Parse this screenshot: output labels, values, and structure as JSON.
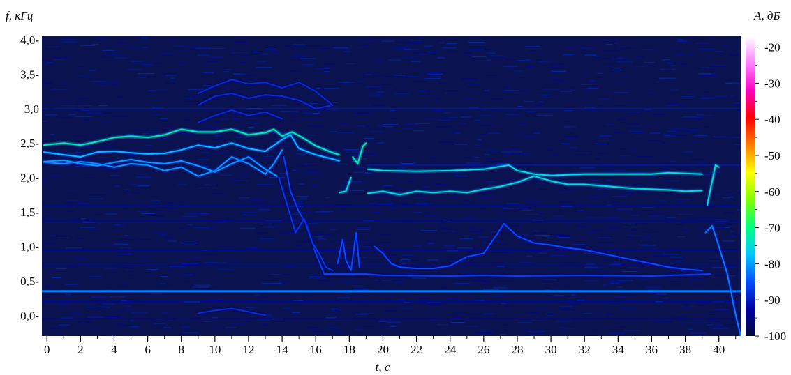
{
  "chart_data": {
    "type": "heatmap",
    "title": "",
    "xlabel": "t, с",
    "ylabel": "f, кГц",
    "colorbar_label": "A, дБ",
    "x_ticks": [
      0,
      2,
      4,
      6,
      8,
      10,
      12,
      14,
      16,
      18,
      20,
      22,
      24,
      26,
      28,
      30,
      32,
      34,
      36,
      38,
      40
    ],
    "x_tick_labels": [
      "0",
      "2",
      "4",
      "6",
      "8",
      "10",
      "12",
      "14",
      "16",
      "18",
      "20",
      "22",
      "24",
      "26",
      "28",
      "30",
      "32",
      "34",
      "36",
      "38",
      "40"
    ],
    "y_ticks": [
      0.0,
      0.5,
      1.0,
      1.5,
      2.0,
      2.5,
      3.0,
      3.5,
      4.0
    ],
    "y_tick_labels": [
      "0,0-",
      "0,5-",
      "1,0-",
      "1,5-",
      "2,0-",
      "2,5-",
      "3,0",
      "3,5-",
      "4,0-"
    ],
    "xlim": [
      -0.3,
      41.3
    ],
    "ylim": [
      -0.3,
      4.05
    ],
    "colorbar_ticks": [
      -20,
      -30,
      -40,
      -50,
      -60,
      -70,
      -80,
      -90,
      -100
    ],
    "colorbar_tick_labels": [
      "-20",
      "-30",
      "-40",
      "-50",
      "-60",
      "-70",
      "-80",
      "-90",
      "-100"
    ],
    "colorbar_range": [
      -100,
      -17
    ],
    "background_color": "#0a1250",
    "colormap": [
      "#000a3c",
      "#0000a0",
      "#0050ff",
      "#00c8ff",
      "#00ff80",
      "#80ff00",
      "#ffff00",
      "#ff8000",
      "#ff0000",
      "#ff00c0",
      "#ff80ff",
      "#ffffff"
    ],
    "constant_lines": [
      {
        "f": 0.35,
        "db": -82
      }
    ],
    "traces": [
      {
        "db": -72,
        "points": [
          [
            -0.2,
            2.47
          ],
          [
            1,
            2.5
          ],
          [
            2,
            2.47
          ],
          [
            3,
            2.52
          ],
          [
            4,
            2.58
          ],
          [
            5,
            2.6
          ],
          [
            6,
            2.58
          ],
          [
            7,
            2.62
          ],
          [
            8,
            2.7
          ],
          [
            9,
            2.66
          ],
          [
            10,
            2.66
          ],
          [
            11,
            2.7
          ],
          [
            12,
            2.62
          ],
          [
            13,
            2.65
          ],
          [
            13.5,
            2.7
          ],
          [
            14,
            2.6
          ],
          [
            14.6,
            2.66
          ],
          [
            15.2,
            2.58
          ],
          [
            16,
            2.46
          ],
          [
            17,
            2.36
          ],
          [
            17.4,
            2.33
          ]
        ]
      },
      {
        "db": -78,
        "points": [
          [
            -0.2,
            2.37
          ],
          [
            1,
            2.33
          ],
          [
            2,
            2.3
          ],
          [
            3,
            2.37
          ],
          [
            4,
            2.38
          ],
          [
            5,
            2.36
          ],
          [
            6,
            2.34
          ],
          [
            7,
            2.35
          ],
          [
            8,
            2.4
          ],
          [
            9,
            2.47
          ],
          [
            10,
            2.43
          ],
          [
            11,
            2.5
          ],
          [
            12,
            2.42
          ],
          [
            13,
            2.38
          ],
          [
            14,
            2.55
          ],
          [
            14.5,
            2.62
          ],
          [
            15,
            2.42
          ],
          [
            16,
            2.33
          ],
          [
            17,
            2.27
          ],
          [
            17.4,
            2.24
          ]
        ]
      },
      {
        "db": -80,
        "points": [
          [
            -0.2,
            2.22
          ],
          [
            1,
            2.2
          ],
          [
            2,
            2.23
          ],
          [
            3,
            2.2
          ],
          [
            4,
            2.15
          ],
          [
            5,
            2.2
          ],
          [
            6,
            2.18
          ],
          [
            7,
            2.1
          ],
          [
            8,
            2.15
          ],
          [
            9,
            2.02
          ],
          [
            10,
            2.1
          ],
          [
            11,
            2.3
          ],
          [
            12,
            2.2
          ],
          [
            13,
            2.05
          ],
          [
            13.5,
            2.2
          ],
          [
            14,
            2.4
          ]
        ]
      },
      {
        "db": -80,
        "points": [
          [
            -0.2,
            2.23
          ],
          [
            1,
            2.25
          ],
          [
            2,
            2.2
          ],
          [
            3,
            2.17
          ],
          [
            4,
            2.22
          ],
          [
            5,
            2.26
          ],
          [
            6,
            2.22
          ],
          [
            7,
            2.2
          ],
          [
            8,
            2.24
          ],
          [
            9,
            2.17
          ],
          [
            10,
            2.08
          ],
          [
            11,
            2.2
          ],
          [
            12,
            2.3
          ],
          [
            13,
            2.12
          ],
          [
            13.7,
            2.02
          ]
        ]
      },
      {
        "db": -88,
        "points": [
          [
            9,
            3.05
          ],
          [
            10,
            3.18
          ],
          [
            11,
            3.22
          ],
          [
            12,
            3.15
          ],
          [
            13,
            3.2
          ],
          [
            14,
            3.18
          ],
          [
            15,
            3.12
          ],
          [
            16,
            3.0
          ],
          [
            17,
            3.05
          ]
        ]
      },
      {
        "db": -88,
        "points": [
          [
            9,
            3.22
          ],
          [
            10,
            3.33
          ],
          [
            11,
            3.42
          ],
          [
            12,
            3.36
          ],
          [
            13,
            3.38
          ],
          [
            14,
            3.3
          ],
          [
            15,
            3.38
          ],
          [
            16,
            3.25
          ],
          [
            17,
            3.05
          ]
        ]
      },
      {
        "db": -88,
        "points": [
          [
            9,
            2.8
          ],
          [
            10,
            2.9
          ],
          [
            11,
            2.98
          ],
          [
            12,
            2.9
          ],
          [
            13,
            2.95
          ],
          [
            14,
            2.85
          ]
        ]
      },
      {
        "db": -86,
        "points": [
          [
            14.1,
            2.3
          ],
          [
            14.5,
            1.8
          ],
          [
            15,
            1.5
          ],
          [
            15.5,
            1.3
          ],
          [
            16,
            0.9
          ],
          [
            16.5,
            0.6
          ],
          [
            17,
            0.6
          ],
          [
            18,
            0.6
          ],
          [
            19,
            0.6
          ],
          [
            20,
            0.58
          ],
          [
            24,
            0.57
          ],
          [
            26,
            0.58
          ],
          [
            28,
            0.57
          ],
          [
            32,
            0.58
          ],
          [
            36,
            0.57
          ],
          [
            39.5,
            0.6
          ]
        ]
      },
      {
        "db": -87,
        "points": [
          [
            13.8,
            2.0
          ],
          [
            14.3,
            1.6
          ],
          [
            14.8,
            1.2
          ],
          [
            15.3,
            1.4
          ],
          [
            15.8,
            1.05
          ],
          [
            16.2,
            0.9
          ],
          [
            16.6,
            0.7
          ],
          [
            17,
            0.65
          ]
        ]
      },
      {
        "db": -85,
        "points": [
          [
            17.3,
            0.75
          ],
          [
            17.6,
            1.1
          ],
          [
            17.8,
            0.8
          ],
          [
            18.1,
            0.65
          ],
          [
            18.4,
            1.2
          ],
          [
            18.6,
            0.7
          ]
        ]
      },
      {
        "db": -72,
        "points": [
          [
            18.2,
            2.3
          ],
          [
            18.5,
            2.2
          ],
          [
            18.8,
            2.45
          ],
          [
            19,
            2.5
          ]
        ]
      },
      {
        "db": -74,
        "points": [
          [
            17.4,
            1.78
          ],
          [
            17.8,
            1.8
          ],
          [
            18.1,
            2.0
          ]
        ]
      },
      {
        "db": -74,
        "points": [
          [
            19.1,
            2.12
          ],
          [
            20,
            2.1
          ],
          [
            22,
            2.09
          ],
          [
            24,
            2.1
          ],
          [
            26,
            2.12
          ],
          [
            27.5,
            2.18
          ],
          [
            28,
            2.1
          ],
          [
            29,
            2.05
          ],
          [
            30,
            2.03
          ],
          [
            32,
            2.05
          ],
          [
            34,
            2.05
          ],
          [
            36,
            2.05
          ],
          [
            37,
            2.07
          ],
          [
            39,
            2.05
          ]
        ]
      },
      {
        "db": -74,
        "points": [
          [
            19.1,
            1.77
          ],
          [
            20,
            1.8
          ],
          [
            21,
            1.75
          ],
          [
            22,
            1.8
          ],
          [
            23,
            1.78
          ],
          [
            24,
            1.8
          ],
          [
            25,
            1.78
          ],
          [
            26,
            1.83
          ],
          [
            27,
            1.87
          ],
          [
            28,
            1.93
          ],
          [
            29,
            2.02
          ],
          [
            30,
            1.95
          ],
          [
            31,
            1.9
          ],
          [
            32,
            1.9
          ],
          [
            33,
            1.88
          ],
          [
            34,
            1.86
          ],
          [
            35,
            1.84
          ],
          [
            36,
            1.83
          ],
          [
            37,
            1.82
          ],
          [
            38,
            1.8
          ],
          [
            39,
            1.81
          ]
        ]
      },
      {
        "db": -85,
        "points": [
          [
            19.5,
            1.0
          ],
          [
            20,
            0.9
          ],
          [
            20.5,
            0.75
          ],
          [
            21,
            0.7
          ],
          [
            22,
            0.68
          ],
          [
            23,
            0.68
          ],
          [
            24,
            0.72
          ],
          [
            25,
            0.85
          ],
          [
            26,
            0.9
          ],
          [
            26.8,
            1.18
          ],
          [
            27.2,
            1.33
          ],
          [
            28,
            1.15
          ],
          [
            29,
            1.05
          ],
          [
            30,
            1.02
          ],
          [
            31,
            0.98
          ],
          [
            32,
            0.95
          ],
          [
            33,
            0.9
          ],
          [
            34,
            0.85
          ],
          [
            35,
            0.8
          ],
          [
            36,
            0.75
          ],
          [
            37,
            0.7
          ],
          [
            38,
            0.67
          ],
          [
            39,
            0.65
          ]
        ]
      },
      {
        "db": -74,
        "points": [
          [
            39.3,
            1.6
          ],
          [
            39.6,
            1.95
          ],
          [
            39.8,
            2.18
          ],
          [
            40,
            2.15
          ]
        ]
      },
      {
        "db": -82,
        "points": [
          [
            39.2,
            1.2
          ],
          [
            39.6,
            1.3
          ],
          [
            40,
            1.0
          ],
          [
            40.5,
            0.6
          ],
          [
            41,
            0.0
          ],
          [
            41.3,
            -0.3
          ]
        ]
      },
      {
        "db": -88,
        "points": [
          [
            9,
            0.03
          ],
          [
            10,
            0.07
          ],
          [
            11,
            0.1
          ],
          [
            12,
            0.05
          ],
          [
            13,
            0.0
          ]
        ]
      }
    ],
    "noise_lines": [
      {
        "f": 3.0,
        "db": -90,
        "x0": -0.3,
        "x1": 41.3
      },
      {
        "f": 2.18,
        "db": -90,
        "x0": 19,
        "x1": 41.3
      },
      {
        "f": 1.6,
        "db": -92,
        "x0": -0.3,
        "x1": 41.3
      },
      {
        "f": 1.37,
        "db": -92,
        "x0": -0.3,
        "x1": 41.3
      },
      {
        "f": 0.95,
        "db": -92,
        "x0": -0.3,
        "x1": 41.3
      },
      {
        "f": 0.72,
        "db": -92,
        "x0": -0.3,
        "x1": 41.3
      },
      {
        "f": 0.2,
        "db": -92,
        "x0": -0.3,
        "x1": 41.3
      },
      {
        "f": -0.05,
        "db": -93,
        "x0": -0.3,
        "x1": 41.3
      }
    ]
  }
}
